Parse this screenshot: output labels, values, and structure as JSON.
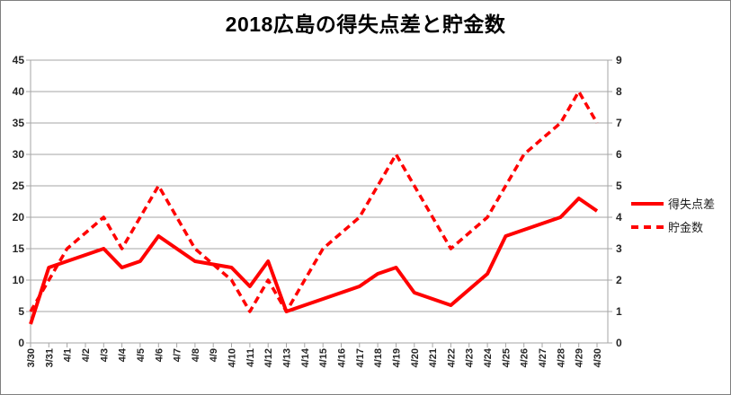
{
  "title": "2018広島の得失点差と貯金数",
  "legend": {
    "series1_label": "得失点差",
    "series2_label": "貯金数"
  },
  "colors": {
    "series": "#FF0000",
    "grid": "#A6A6A6",
    "axis_text": "#262626",
    "title_text": "#000000",
    "border": "#7F7F7F",
    "background": "#FFFFFF"
  },
  "chart_data": {
    "type": "line",
    "title": "2018広島の得失点差と貯金数",
    "categories": [
      "3/30",
      "3/31",
      "4/1",
      "4/2",
      "4/3",
      "4/4",
      "4/5",
      "4/6",
      "4/7",
      "4/8",
      "4/9",
      "4/10",
      "4/11",
      "4/12",
      "4/13",
      "4/14",
      "4/15",
      "4/16",
      "4/17",
      "4/18",
      "4/19",
      "4/20",
      "4/21",
      "4/22",
      "4/23",
      "4/24",
      "4/25",
      "4/26",
      "4/27",
      "4/28",
      "4/29",
      "4/30"
    ],
    "series": [
      {
        "name": "得失点差",
        "axis": "left",
        "line_style": "solid",
        "color": "#FF0000",
        "values": [
          3,
          12,
          13,
          14,
          15,
          12,
          13,
          17,
          15,
          13,
          12.5,
          12,
          9,
          13,
          5,
          6,
          7,
          8,
          9,
          11,
          12,
          8,
          7,
          6,
          8.5,
          11,
          17,
          18,
          19,
          20,
          23,
          21
        ]
      },
      {
        "name": "貯金数",
        "axis": "right",
        "line_style": "dashed",
        "color": "#FF0000",
        "values": [
          1,
          2,
          3,
          3.5,
          4,
          3,
          4,
          5,
          4,
          3,
          2.5,
          2,
          1,
          2,
          1,
          2,
          3,
          3.5,
          4,
          5,
          6,
          5,
          4,
          3,
          3.5,
          4,
          5,
          6,
          6.5,
          7,
          8,
          7
        ]
      }
    ],
    "left_axis": {
      "min": 0,
      "max": 45,
      "step": 5,
      "tick_labels": [
        "0",
        "5",
        "10",
        "15",
        "20",
        "25",
        "30",
        "35",
        "40",
        "45"
      ]
    },
    "right_axis": {
      "min": 0,
      "max": 9,
      "step": 1,
      "tick_labels": [
        "0",
        "1",
        "2",
        "3",
        "4",
        "5",
        "6",
        "7",
        "8",
        "9"
      ]
    },
    "grid": "horizontal-only",
    "legend_position": "right",
    "x_tick_label_rotation": -90
  }
}
